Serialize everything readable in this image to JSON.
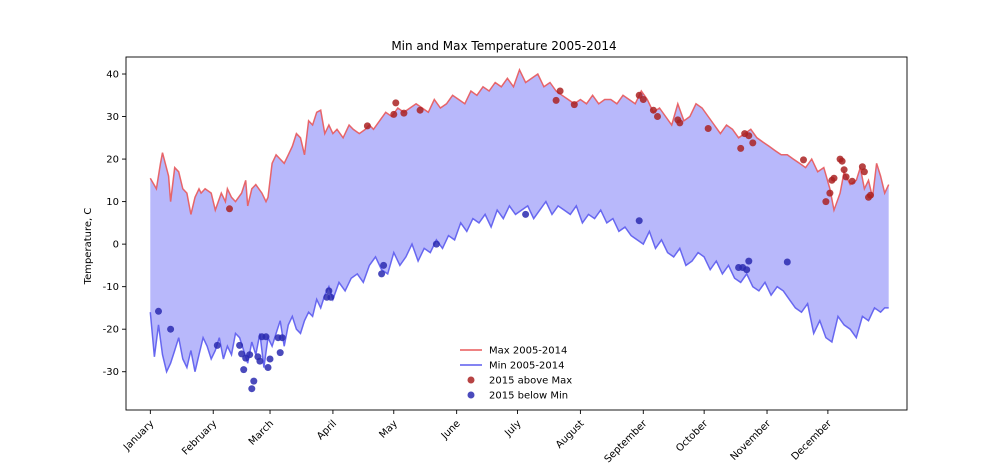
{
  "chart_data": {
    "type": "line",
    "title": "Min and Max Temperature 2005-2014",
    "xlabel": "",
    "ylabel": "Temperature, C",
    "ylim": [
      -39,
      44
    ],
    "xlim": [
      -12,
      373
    ],
    "yticks": [
      -30,
      -20,
      -10,
      0,
      10,
      20,
      30,
      40
    ],
    "months": [
      {
        "label": "January",
        "day": 0
      },
      {
        "label": "February",
        "day": 31
      },
      {
        "label": "March",
        "day": 59
      },
      {
        "label": "April",
        "day": 90
      },
      {
        "label": "May",
        "day": 120
      },
      {
        "label": "June",
        "day": 151
      },
      {
        "label": "July",
        "day": 181
      },
      {
        "label": "August",
        "day": 212
      },
      {
        "label": "September",
        "day": 243
      },
      {
        "label": "October",
        "day": 273
      },
      {
        "label": "November",
        "day": 304
      },
      {
        "label": "December",
        "day": 334
      }
    ],
    "grid": false,
    "legend_position": "bottom-center",
    "fill_between": {
      "color": "#b8b8fb"
    },
    "series": [
      {
        "name": "Max 2005-2014",
        "color": "#e8585a",
        "x": [
          0,
          3,
          5,
          6,
          9,
          10,
          12,
          14,
          16,
          18,
          20,
          22,
          24,
          25,
          27,
          30,
          32,
          35,
          37,
          38,
          40,
          42,
          45,
          47,
          48,
          50,
          52,
          55,
          57,
          58,
          60,
          62,
          64,
          66,
          68,
          70,
          72,
          74,
          76,
          78,
          80,
          82,
          84,
          86,
          88,
          90,
          92,
          95,
          98,
          100,
          103,
          106,
          108,
          110,
          113,
          116,
          119,
          122,
          125,
          128,
          131,
          134,
          137,
          140,
          143,
          146,
          149,
          152,
          155,
          158,
          161,
          164,
          167,
          170,
          173,
          176,
          179,
          182,
          185,
          188,
          191,
          194,
          197,
          200,
          203,
          206,
          209,
          212,
          215,
          218,
          221,
          224,
          227,
          230,
          233,
          236,
          239,
          242,
          245,
          248,
          251,
          254,
          257,
          260,
          263,
          266,
          269,
          272,
          275,
          278,
          281,
          284,
          287,
          290,
          293,
          296,
          299,
          302,
          305,
          308,
          311,
          314,
          317,
          320,
          323,
          326,
          329,
          332,
          335,
          337,
          340,
          342,
          345,
          348,
          350,
          352,
          354,
          356,
          358,
          360,
          362,
          364
        ],
        "values": [
          15.5,
          13,
          19,
          21.5,
          16,
          10,
          18,
          17,
          13,
          12,
          7,
          11,
          13,
          12,
          13,
          12,
          8,
          12,
          10,
          13,
          11,
          10,
          12,
          15,
          9,
          13,
          14,
          12,
          10,
          11,
          19,
          21,
          20,
          19,
          21,
          23,
          26,
          25,
          21,
          29,
          28,
          31,
          31.5,
          26,
          28,
          26,
          27,
          25,
          28,
          27,
          26,
          27,
          28,
          27,
          29,
          31,
          30,
          32,
          31,
          32,
          33,
          32,
          31,
          34,
          32,
          33,
          35,
          34,
          33,
          36,
          35,
          37,
          36,
          38,
          37,
          39,
          37,
          41,
          38,
          39,
          40,
          37,
          38,
          36,
          35,
          34,
          33,
          34,
          33,
          35,
          33,
          34,
          34,
          33,
          35,
          34,
          33,
          36,
          34,
          31,
          32,
          30,
          28,
          33,
          29,
          30,
          33,
          32,
          30,
          28,
          26,
          28,
          27,
          25,
          26,
          27,
          25,
          24,
          23,
          22,
          21,
          21,
          20,
          19,
          18,
          20,
          17,
          18,
          13,
          8,
          12,
          17,
          14,
          15,
          18,
          13,
          15,
          11,
          19,
          16,
          12,
          14
        ]
      },
      {
        "name": "Min 2005-2014",
        "color": "#5b5bee",
        "x": [
          0,
          2,
          4,
          6,
          8,
          10,
          12,
          14,
          16,
          18,
          20,
          22,
          24,
          26,
          28,
          30,
          32,
          34,
          36,
          38,
          40,
          42,
          44,
          46,
          48,
          50,
          52,
          54,
          56,
          58,
          60,
          62,
          64,
          66,
          68,
          70,
          72,
          74,
          76,
          78,
          80,
          82,
          84,
          86,
          88,
          90,
          93,
          96,
          99,
          102,
          105,
          108,
          111,
          114,
          117,
          120,
          123,
          126,
          129,
          132,
          135,
          138,
          141,
          144,
          147,
          150,
          153,
          156,
          159,
          162,
          165,
          168,
          171,
          174,
          177,
          180,
          183,
          186,
          189,
          192,
          195,
          198,
          201,
          204,
          207,
          210,
          213,
          216,
          219,
          222,
          225,
          228,
          231,
          234,
          237,
          240,
          243,
          246,
          249,
          252,
          255,
          258,
          261,
          264,
          267,
          270,
          273,
          276,
          279,
          282,
          285,
          288,
          291,
          294,
          297,
          300,
          303,
          306,
          309,
          312,
          315,
          318,
          321,
          324,
          327,
          330,
          333,
          336,
          339,
          342,
          345,
          348,
          351,
          354,
          357,
          360,
          362,
          364
        ],
        "values": [
          -16,
          -26.5,
          -19,
          -26,
          -30,
          -28,
          -25,
          -22,
          -27,
          -29,
          -25,
          -30,
          -26,
          -22,
          -24,
          -27,
          -25,
          -22,
          -27,
          -24,
          -26,
          -21,
          -22,
          -25,
          -28,
          -23,
          -26,
          -21,
          -29,
          -22,
          -24,
          -21,
          -18,
          -24,
          -19,
          -17,
          -20,
          -21,
          -18,
          -16,
          -17,
          -13,
          -15,
          -12,
          -10,
          -13,
          -9,
          -11,
          -8,
          -7,
          -9,
          -5,
          -3,
          -6,
          -7,
          -2,
          -5,
          -3,
          0,
          -4,
          -1,
          -2,
          1,
          -1,
          2,
          1,
          5,
          3,
          6,
          5,
          7,
          4,
          8,
          6,
          9,
          7,
          8,
          9,
          6,
          8,
          10,
          7,
          9,
          8,
          7,
          9,
          5,
          7,
          6,
          8,
          5,
          6,
          3,
          4,
          2,
          1,
          0,
          3,
          -1,
          1,
          -2,
          -3,
          -1,
          -5,
          -4,
          -2,
          -3,
          -6,
          -4,
          -7,
          -5,
          -8,
          -9,
          -7,
          -10,
          -11,
          -9,
          -12,
          -10,
          -11,
          -13,
          -15,
          -16,
          -14,
          -21,
          -18,
          -22,
          -23,
          -17,
          -19,
          -20,
          -22,
          -17,
          -18,
          -15,
          -16,
          -15,
          -15
        ]
      }
    ],
    "scatter": [
      {
        "name": "2015 above Max",
        "color": "#aa2222",
        "points": [
          [
            39,
            8.3
          ],
          [
            107,
            27.8
          ],
          [
            121,
            33.2
          ],
          [
            120,
            30.5
          ],
          [
            125,
            30.8
          ],
          [
            133,
            31.5
          ],
          [
            200,
            33.8
          ],
          [
            202,
            36
          ],
          [
            209,
            32.8
          ],
          [
            241,
            35
          ],
          [
            243,
            34
          ],
          [
            248,
            31.5
          ],
          [
            250,
            30
          ],
          [
            260,
            29.2
          ],
          [
            261,
            28.5
          ],
          [
            275,
            27.2
          ],
          [
            293,
            26
          ],
          [
            295,
            25.5
          ],
          [
            297,
            23.8
          ],
          [
            291,
            22.5
          ],
          [
            322,
            19.8
          ],
          [
            333,
            10
          ],
          [
            335,
            12
          ],
          [
            336,
            15
          ],
          [
            337,
            15.5
          ],
          [
            340,
            20
          ],
          [
            341,
            19.5
          ],
          [
            342,
            17.5
          ],
          [
            343,
            15.8
          ],
          [
            346,
            14.8
          ],
          [
            351,
            18.2
          ],
          [
            352,
            17
          ],
          [
            354,
            11
          ],
          [
            355,
            11.5
          ]
        ]
      },
      {
        "name": "2015 below Min",
        "color": "#2a2ab0",
        "points": [
          [
            4,
            -15.8
          ],
          [
            10,
            -20
          ],
          [
            33,
            -23.8
          ],
          [
            44,
            -23.8
          ],
          [
            45,
            -25.8
          ],
          [
            46,
            -29.5
          ],
          [
            47,
            -26.8
          ],
          [
            49,
            -26
          ],
          [
            50,
            -34
          ],
          [
            51,
            -32.2
          ],
          [
            53,
            -26.5
          ],
          [
            54,
            -27.5
          ],
          [
            55,
            -21.8
          ],
          [
            57,
            -21.8
          ],
          [
            58,
            -29
          ],
          [
            59,
            -27
          ],
          [
            63,
            -22
          ],
          [
            64,
            -25.5
          ],
          [
            65,
            -22
          ],
          [
            87,
            -12.5
          ],
          [
            88,
            -11
          ],
          [
            89,
            -12.5
          ],
          [
            115,
            -5
          ],
          [
            114,
            -7
          ],
          [
            141,
            0
          ],
          [
            185,
            7
          ],
          [
            241,
            5.5
          ],
          [
            290,
            -5.5
          ],
          [
            292,
            -5.5
          ],
          [
            294,
            -6
          ],
          [
            295,
            -4
          ],
          [
            314,
            -4.2
          ]
        ]
      }
    ]
  }
}
